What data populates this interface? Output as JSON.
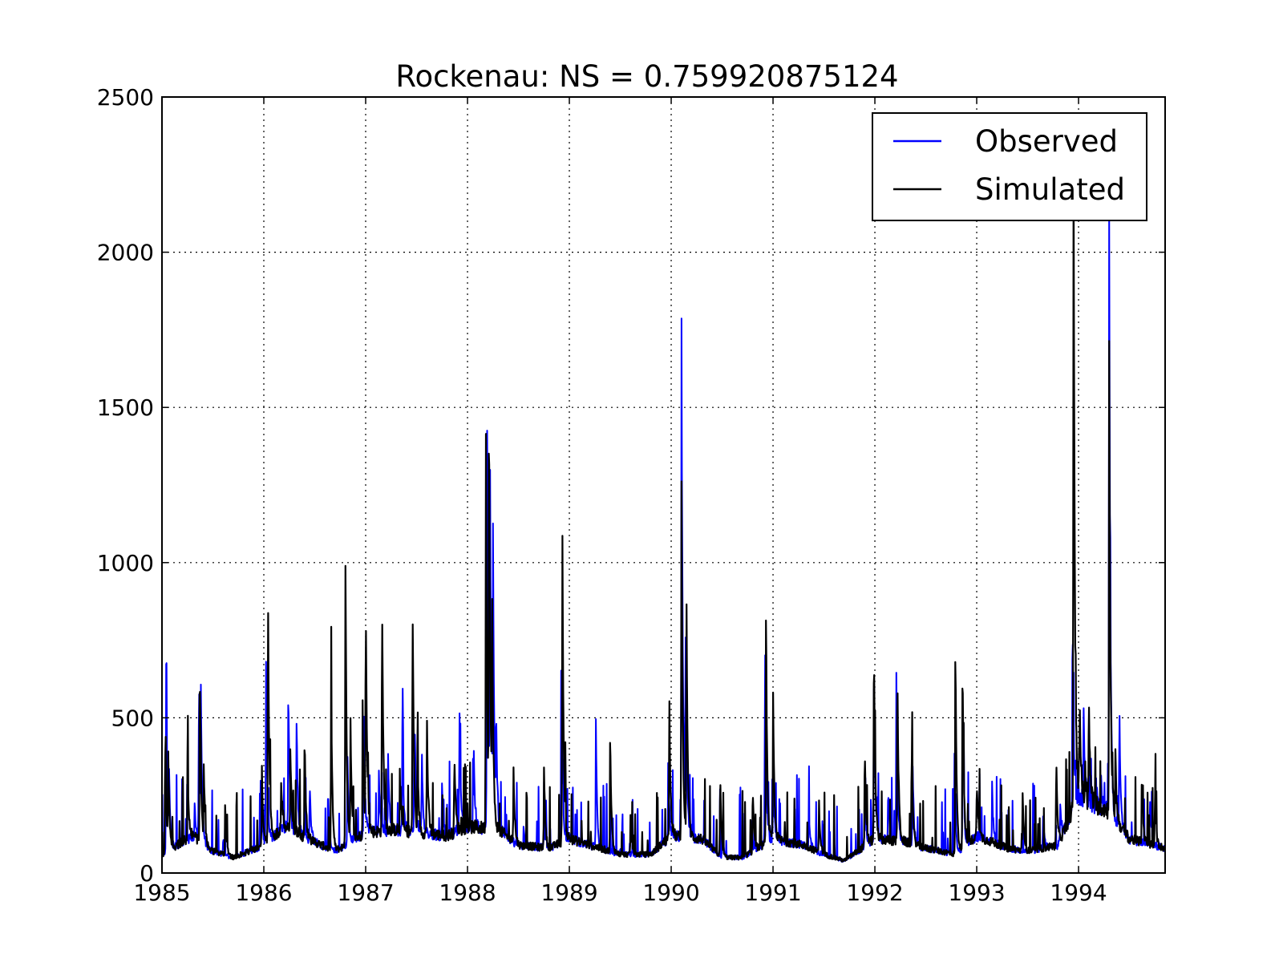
{
  "chart_data": {
    "type": "line",
    "title": "Rockenau: NS = 0.759920875124",
    "xlabel": "",
    "ylabel": "",
    "xlim": [
      1985.0,
      1994.85
    ],
    "ylim": [
      0,
      2500
    ],
    "x_ticks": [
      "1985",
      "1986",
      "1987",
      "1988",
      "1989",
      "1990",
      "1991",
      "1992",
      "1993",
      "1994"
    ],
    "y_ticks": [
      "0",
      "500",
      "1000",
      "1500",
      "2000",
      "2500"
    ],
    "grid": true,
    "legend_position": "top-right",
    "baseflow": [
      [
        1985.0,
        60
      ],
      [
        1985.3,
        120
      ],
      [
        1985.5,
        70
      ],
      [
        1985.7,
        50
      ],
      [
        1986.0,
        90
      ],
      [
        1986.2,
        150
      ],
      [
        1986.5,
        100
      ],
      [
        1986.7,
        70
      ],
      [
        1987.0,
        130
      ],
      [
        1987.3,
        140
      ],
      [
        1987.5,
        130
      ],
      [
        1987.8,
        120
      ],
      [
        1988.0,
        150
      ],
      [
        1988.3,
        140
      ],
      [
        1988.5,
        90
      ],
      [
        1988.8,
        80
      ],
      [
        1989.0,
        110
      ],
      [
        1989.3,
        80
      ],
      [
        1989.5,
        60
      ],
      [
        1989.8,
        60
      ],
      [
        1990.0,
        120
      ],
      [
        1990.3,
        110
      ],
      [
        1990.5,
        50
      ],
      [
        1990.7,
        50
      ],
      [
        1991.0,
        110
      ],
      [
        1991.3,
        90
      ],
      [
        1991.5,
        60
      ],
      [
        1991.7,
        40
      ],
      [
        1992.0,
        110
      ],
      [
        1992.3,
        100
      ],
      [
        1992.5,
        80
      ],
      [
        1992.8,
        60
      ],
      [
        1993.0,
        120
      ],
      [
        1993.3,
        80
      ],
      [
        1993.5,
        70
      ],
      [
        1993.8,
        90
      ],
      [
        1994.0,
        250
      ],
      [
        1994.3,
        200
      ],
      [
        1994.5,
        110
      ],
      [
        1994.85,
        80
      ]
    ],
    "series": [
      {
        "name": "Observed",
        "color": "#0000ff",
        "peaks": [
          [
            1985.04,
            730
          ],
          [
            1985.07,
            300
          ],
          [
            1985.32,
            230
          ],
          [
            1985.36,
            500
          ],
          [
            1985.38,
            620
          ],
          [
            1985.6,
            110
          ],
          [
            1985.97,
            330
          ],
          [
            1986.02,
            780
          ],
          [
            1986.24,
            665
          ],
          [
            1986.32,
            550
          ],
          [
            1986.45,
            320
          ],
          [
            1986.63,
            300
          ],
          [
            1986.82,
            420
          ],
          [
            1986.98,
            580
          ],
          [
            1987.13,
            320
          ],
          [
            1987.22,
            410
          ],
          [
            1987.36,
            480
          ],
          [
            1987.48,
            560
          ],
          [
            1987.55,
            430
          ],
          [
            1987.75,
            300
          ],
          [
            1987.92,
            610
          ],
          [
            1988.06,
            420
          ],
          [
            1988.19,
            1810
          ],
          [
            1988.22,
            1350
          ],
          [
            1988.25,
            1040
          ],
          [
            1988.28,
            520
          ],
          [
            1988.55,
            150
          ],
          [
            1988.75,
            200
          ],
          [
            1988.92,
            800
          ],
          [
            1989.26,
            490
          ],
          [
            1989.5,
            80
          ],
          [
            1989.97,
            360
          ],
          [
            1990.1,
            2000
          ],
          [
            1990.14,
            850
          ],
          [
            1990.5,
            180
          ],
          [
            1990.78,
            200
          ],
          [
            1990.92,
            820
          ],
          [
            1991.0,
            350
          ],
          [
            1991.35,
            230
          ],
          [
            1991.9,
            300
          ],
          [
            1991.99,
            780
          ],
          [
            1992.13,
            300
          ],
          [
            1992.21,
            700
          ],
          [
            1992.37,
            380
          ],
          [
            1992.78,
            420
          ],
          [
            1992.86,
            600
          ],
          [
            1993.15,
            300
          ],
          [
            1993.65,
            200
          ],
          [
            1993.82,
            230
          ],
          [
            1993.94,
            900
          ],
          [
            1994.05,
            560
          ],
          [
            1994.22,
            300
          ],
          [
            1994.3,
            2150
          ],
          [
            1994.4,
            590
          ],
          [
            1994.7,
            250
          ]
        ]
      },
      {
        "name": "Simulated",
        "color": "#000000",
        "peaks": [
          [
            1985.03,
            480
          ],
          [
            1985.06,
            400
          ],
          [
            1985.25,
            380
          ],
          [
            1985.37,
            740
          ],
          [
            1985.41,
            350
          ],
          [
            1985.62,
            240
          ],
          [
            1985.98,
            360
          ],
          [
            1986.04,
            990
          ],
          [
            1986.17,
            320
          ],
          [
            1986.26,
            410
          ],
          [
            1986.4,
            470
          ],
          [
            1986.66,
            670
          ],
          [
            1986.8,
            1120
          ],
          [
            1986.85,
            510
          ],
          [
            1986.97,
            550
          ],
          [
            1987.0,
            940
          ],
          [
            1987.16,
            1000
          ],
          [
            1987.34,
            300
          ],
          [
            1987.46,
            970
          ],
          [
            1987.51,
            350
          ],
          [
            1987.6,
            550
          ],
          [
            1987.87,
            430
          ],
          [
            1988.18,
            1500
          ],
          [
            1988.21,
            1600
          ],
          [
            1988.24,
            900
          ],
          [
            1988.45,
            380
          ],
          [
            1988.75,
            380
          ],
          [
            1988.93,
            1230
          ],
          [
            1989.4,
            480
          ],
          [
            1989.6,
            200
          ],
          [
            1989.98,
            640
          ],
          [
            1990.1,
            1400
          ],
          [
            1990.15,
            880
          ],
          [
            1990.48,
            350
          ],
          [
            1990.8,
            300
          ],
          [
            1990.93,
            860
          ],
          [
            1991.0,
            590
          ],
          [
            1991.45,
            250
          ],
          [
            1991.9,
            430
          ],
          [
            1991.99,
            800
          ],
          [
            1992.22,
            720
          ],
          [
            1992.36,
            440
          ],
          [
            1992.79,
            780
          ],
          [
            1992.86,
            760
          ],
          [
            1993.0,
            330
          ],
          [
            1993.45,
            270
          ],
          [
            1993.78,
            400
          ],
          [
            1993.95,
            2500
          ],
          [
            1994.01,
            580
          ],
          [
            1994.1,
            580
          ],
          [
            1994.3,
            1720
          ],
          [
            1994.36,
            410
          ],
          [
            1994.62,
            300
          ],
          [
            1994.75,
            260
          ]
        ]
      }
    ]
  }
}
